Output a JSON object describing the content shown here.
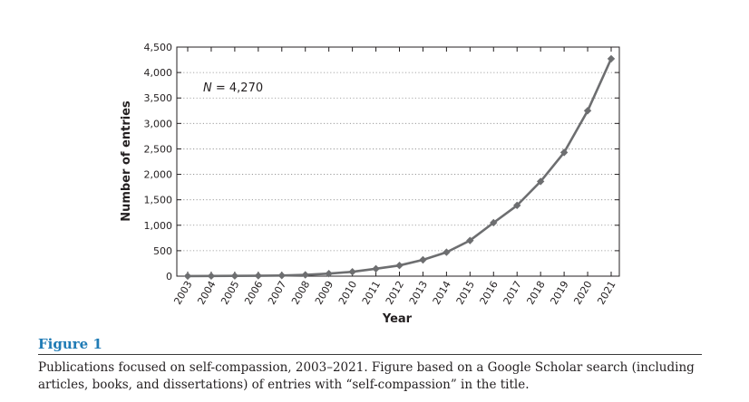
{
  "chart_data": {
    "type": "line",
    "x": [
      "2003",
      "2004",
      "2005",
      "2006",
      "2007",
      "2008",
      "2009",
      "2010",
      "2011",
      "2012",
      "2013",
      "2014",
      "2015",
      "2016",
      "2017",
      "2018",
      "2019",
      "2020",
      "2021"
    ],
    "series": [
      {
        "values": [
          2,
          3,
          5,
          8,
          13,
          25,
          50,
          85,
          145,
          210,
          320,
          470,
          700,
          1050,
          1390,
          1860,
          2430,
          3250,
          4270
        ],
        "color": "#6d6e70",
        "marker": "diamond"
      }
    ],
    "xlabel": "Year",
    "ylabel": "Number of entries",
    "ylim": [
      0,
      4500
    ],
    "yticks": [
      0,
      500,
      1000,
      1500,
      2000,
      2500,
      3000,
      3500,
      4000,
      4500
    ],
    "ytick_labels": [
      "0",
      "500",
      "1,000",
      "1,500",
      "2,000",
      "2,500",
      "3,000",
      "3,500",
      "4,000",
      "4,500"
    ],
    "grid": "horizontal dotted",
    "annotation": {
      "variable": "N",
      "text": " = 4,270"
    }
  },
  "figure": {
    "label": "Figure 1",
    "caption": "Publications focused on self-compassion, 2003–2021. Figure based on a Google Scholar search (including articles, books, and dissertations) of entries with “self-compassion” in the title."
  }
}
